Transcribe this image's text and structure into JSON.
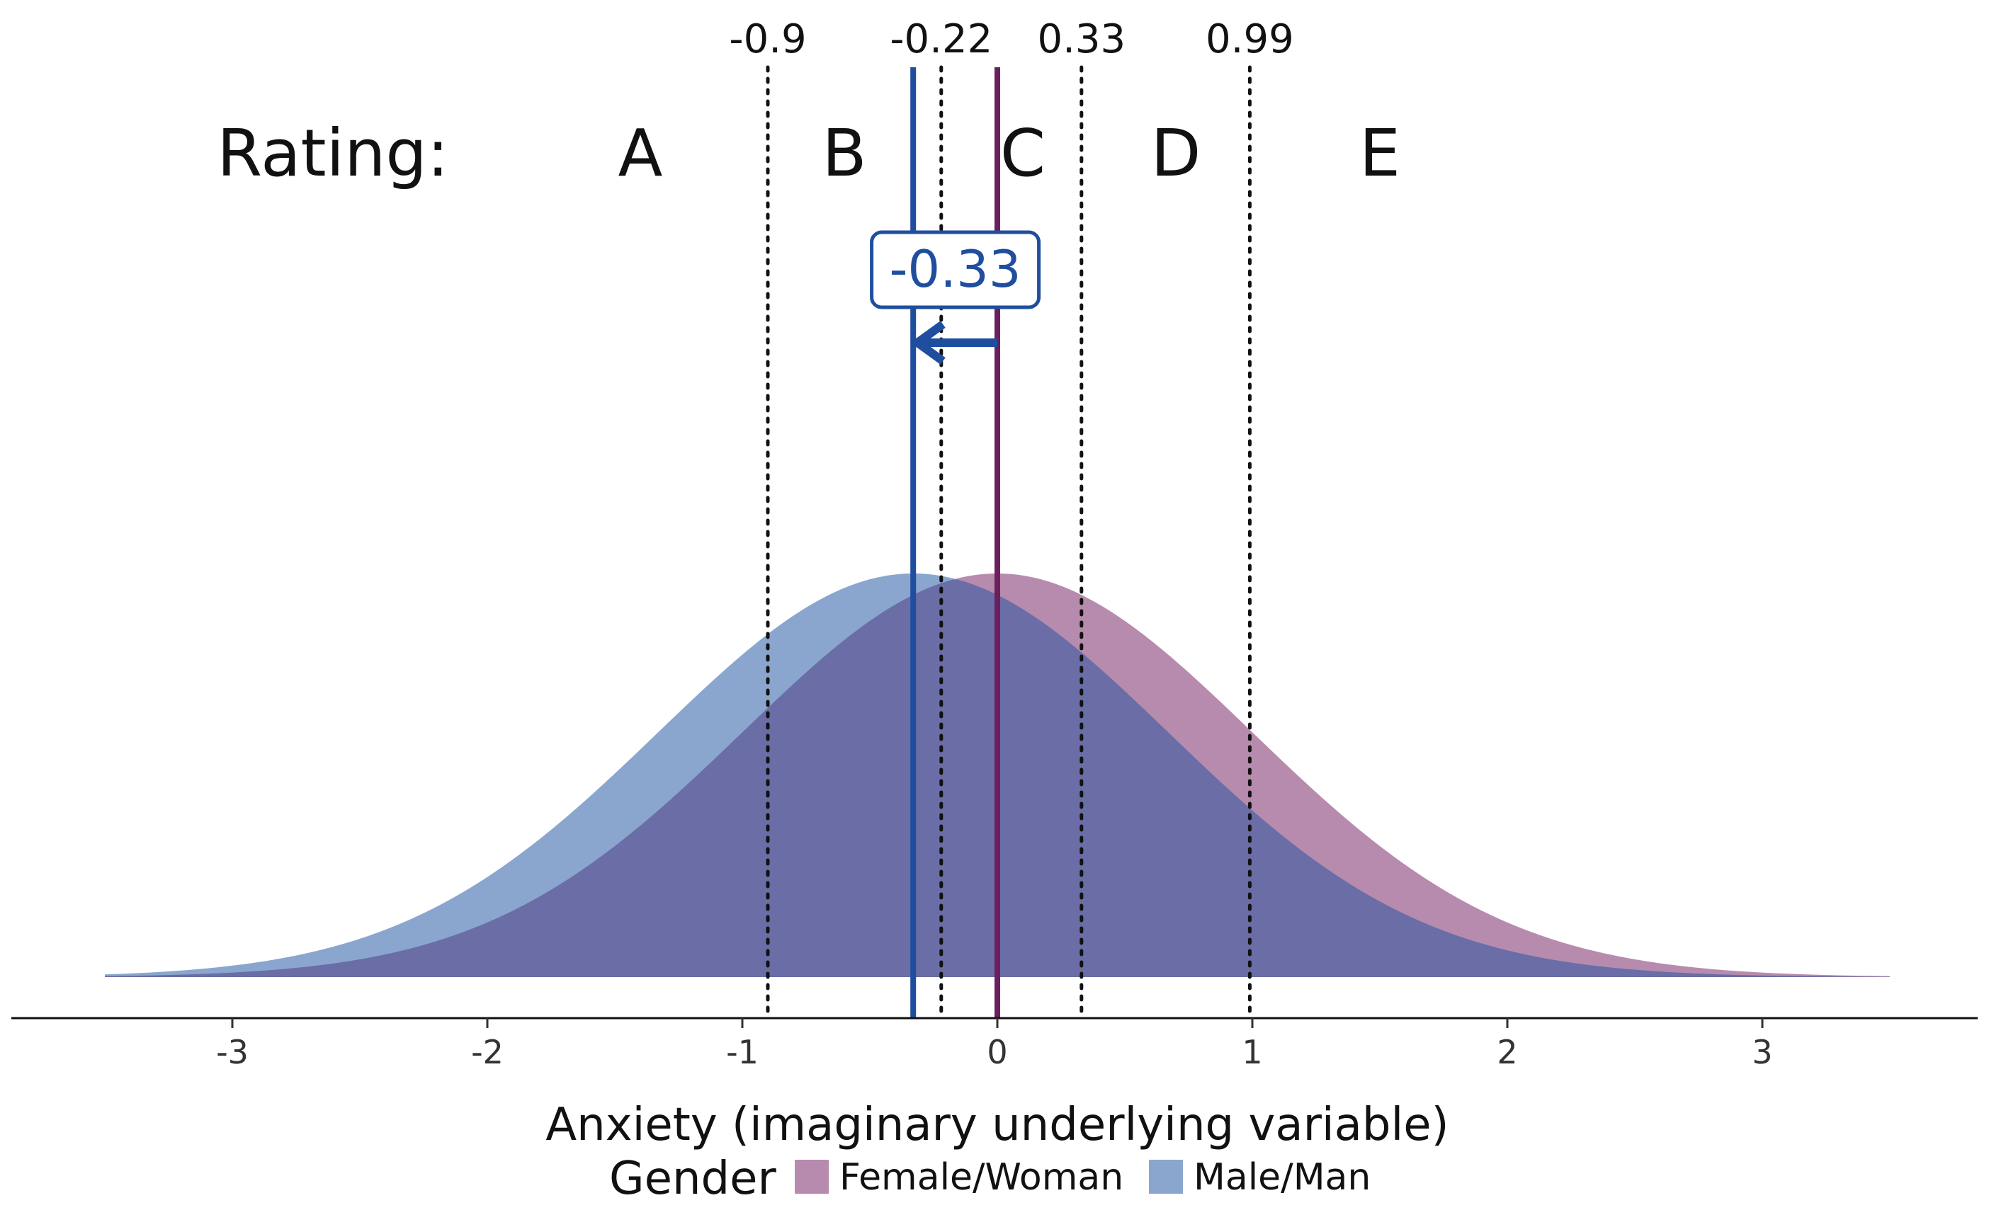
{
  "chart_data": {
    "type": "area",
    "xlabel": "Anxiety (imaginary underlying variable)",
    "xlim": [
      -3.5,
      3.5
    ],
    "xticks": [
      -3,
      -2,
      -1,
      0,
      1,
      2,
      3
    ],
    "series": [
      {
        "name": "Female/Woman",
        "distribution": "normal",
        "mean": 0,
        "sd": 1,
        "color": "#B78BAE"
      },
      {
        "name": "Male/Man",
        "distribution": "normal",
        "mean": -0.33,
        "sd": 1,
        "color": "#8AA6CE"
      }
    ],
    "overlap_color": "#6A6DA6",
    "thresholds": [
      {
        "label": "-0.9",
        "value": -0.9
      },
      {
        "label": "-0.22",
        "value": -0.22
      },
      {
        "label": "0.33",
        "value": 0.33
      },
      {
        "label": "0.99",
        "value": 0.99
      }
    ],
    "rating_label": "Rating:",
    "ratings": [
      {
        "label": "A",
        "value": -1.4
      },
      {
        "label": "B",
        "value": -0.6
      },
      {
        "label": "C",
        "value": 0.1
      },
      {
        "label": "D",
        "value": 0.7
      },
      {
        "label": "E",
        "value": 1.5
      }
    ],
    "mean_lines": [
      {
        "group": "Female/Woman",
        "value": 0,
        "color": "#6B1F5E"
      },
      {
        "group": "Male/Man",
        "value": -0.33,
        "color": "#1F4E9F"
      }
    ],
    "shift_annotation": {
      "label": "-0.33",
      "from": 0,
      "to": -0.33,
      "color": "#1F4E9F"
    },
    "legend": {
      "title": "Gender",
      "position": "bottom",
      "items": [
        {
          "label": "Female/Woman",
          "color": "#B78BAE"
        },
        {
          "label": "Male/Man",
          "color": "#8AA6CE"
        }
      ]
    },
    "grid": false
  }
}
